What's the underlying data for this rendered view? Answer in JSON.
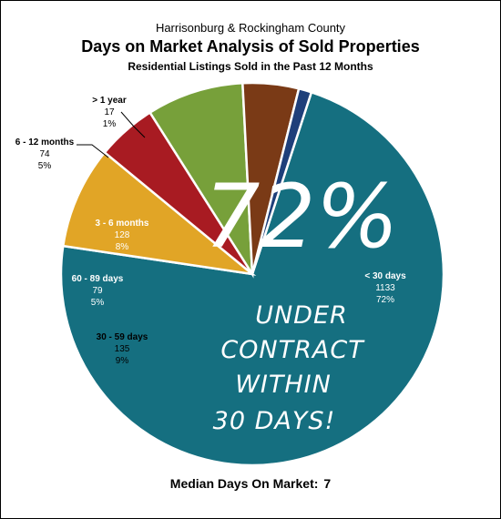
{
  "header": {
    "supertitle": "Harrisonburg & Rockingham County",
    "title": "Days on Market Analysis of Sold Properties",
    "subtitle": "Residential Listings Sold in the Past 12 Months"
  },
  "chart_data": {
    "type": "pie",
    "slices": [
      {
        "label": "< 30 days",
        "value": 1133,
        "percent": "72%",
        "color": "#156f80"
      },
      {
        "label": "30 - 59 days",
        "value": 135,
        "percent": "9%",
        "color": "#e1a526"
      },
      {
        "label": "60 - 89 days",
        "value": 79,
        "percent": "5%",
        "color": "#a81b22"
      },
      {
        "label": "3 - 6 months",
        "value": 128,
        "percent": "8%",
        "color": "#77a03a"
      },
      {
        "label": "6 - 12 months",
        "value": 74,
        "percent": "5%",
        "color": "#7a3a16"
      },
      {
        "label": "> 1 year",
        "value": 17,
        "percent": "1%",
        "color": "#1e3f7a"
      }
    ]
  },
  "annotation": {
    "big_percent": "72%",
    "lines": [
      "UNDER",
      "CONTRACT",
      "WITHIN",
      "30 DAYS!"
    ]
  },
  "footer": {
    "median_label": "Median Days On Market:",
    "median_value": "7"
  }
}
